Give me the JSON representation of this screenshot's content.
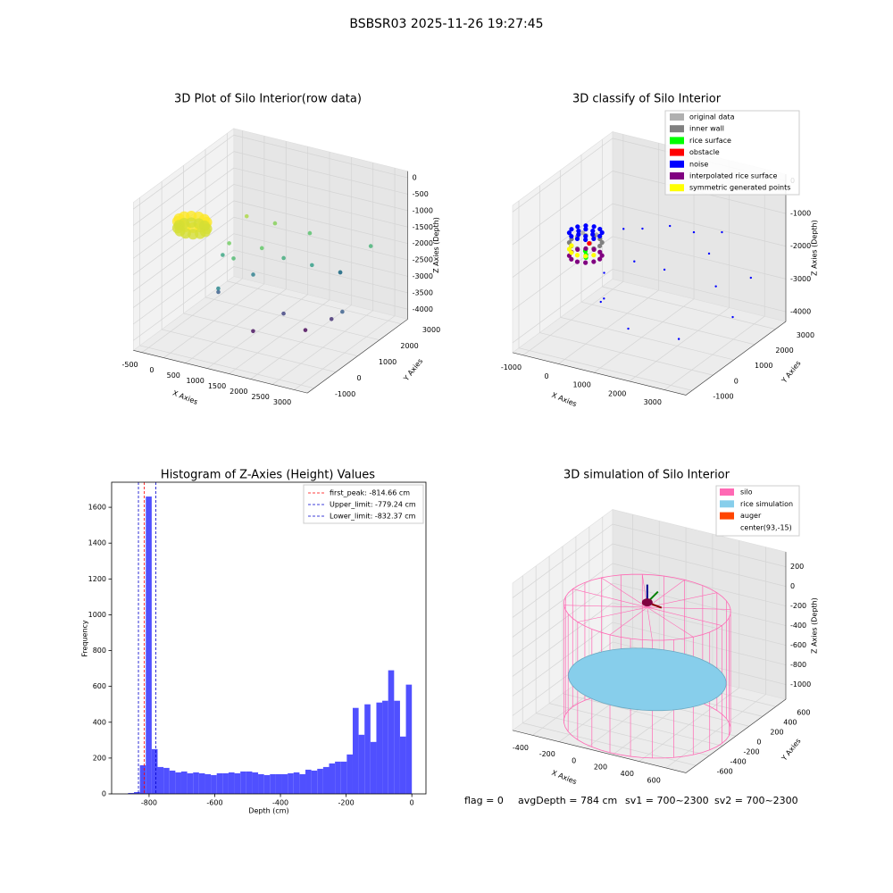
{
  "title": "BSBSR03 2025-11-26 19:27:45",
  "chart_data": [
    {
      "type": "scatter3d",
      "title": "3D Plot of Silo Interior(row data)",
      "xlabel": "X Axies",
      "ylabel": "Y Axies",
      "zlabel": "Z Axies (Depth)",
      "xlim": [
        -700,
        3300
      ],
      "ylim": [
        -1300,
        3300
      ],
      "zlim": [
        -4300,
        200
      ],
      "xticks": [
        -500,
        0,
        500,
        1000,
        1500,
        2000,
        2500,
        3000
      ],
      "yticks": [
        -1000,
        0,
        1000,
        2000,
        3000
      ],
      "zticks": [
        0,
        -500,
        -1000,
        -1500,
        -2000,
        -2500,
        -3000,
        -3500,
        -4000
      ],
      "colormap": "viridis",
      "x": [
        300,
        260,
        150,
        0,
        -150,
        -260,
        -300,
        -260,
        -150,
        0,
        150,
        260,
        300,
        260,
        150,
        0,
        -150,
        -260,
        -300,
        -260,
        -150,
        0,
        150,
        260,
        600,
        800,
        1200,
        1500,
        2000,
        2500,
        900,
        400,
        1800,
        2600,
        3000,
        1300,
        700,
        2200,
        2800,
        500,
        1000,
        1600,
        2100,
        300
      ],
      "y": [
        0,
        150,
        260,
        300,
        260,
        150,
        0,
        -150,
        -260,
        -300,
        -260,
        -150,
        0,
        150,
        260,
        300,
        260,
        150,
        0,
        -150,
        -260,
        -300,
        -260,
        -150,
        500,
        300,
        800,
        1200,
        1500,
        1800,
        1000,
        400,
        600,
        1200,
        900,
        200,
        -200,
        2400,
        2600,
        1500,
        1800,
        2200,
        1000,
        800
      ],
      "z": [
        -800,
        -800,
        -800,
        -800,
        -800,
        -800,
        -800,
        -800,
        -800,
        -800,
        -800,
        -800,
        -1000,
        -1000,
        -1000,
        -1000,
        -1000,
        -1000,
        -1000,
        -1000,
        -1000,
        -1000,
        -1000,
        -1000,
        -1500,
        -1800,
        -1600,
        -2000,
        -2200,
        -2400,
        -2600,
        -3000,
        -3300,
        -3500,
        -3000,
        -3800,
        -2500,
        -2800,
        -1900,
        -1200,
        -1400,
        -1700,
        -3900,
        -2100
      ]
    },
    {
      "type": "scatter3d",
      "title": "3D classify of Silo Interior",
      "xlabel": "X Axies",
      "ylabel": "Y Axies",
      "zlabel": "Z Axies (Depth)",
      "xlim": [
        -1300,
        3600
      ],
      "ylim": [
        -1300,
        3500
      ],
      "zlim": [
        -4300,
        200
      ],
      "xticks": [
        -1000,
        0,
        1000,
        2000,
        3000
      ],
      "yticks": [
        -1000,
        0,
        1000,
        2000,
        3000
      ],
      "zticks": [
        0,
        -1000,
        -2000,
        -3000,
        -4000
      ],
      "series": [
        {
          "name": "original data",
          "color": "#b0b0b0",
          "x": [
            300,
            -200,
            100
          ],
          "y": [
            -300,
            200,
            350
          ],
          "z": [
            -1000,
            -1050,
            -1100
          ]
        },
        {
          "name": "inner wall",
          "color": "#808080",
          "x": [
            400,
            346,
            200,
            0,
            -200,
            -346,
            -400,
            -346,
            -200,
            0,
            200,
            346
          ],
          "y": [
            0,
            200,
            346,
            400,
            346,
            200,
            0,
            -200,
            -346,
            -400,
            -346,
            -200
          ],
          "z": [
            -1200,
            -1200,
            -1200,
            -1200,
            -1200,
            -1200,
            -1200,
            -1200,
            -1200,
            -1200,
            -1200,
            -1200
          ]
        },
        {
          "name": "rice surface",
          "color": "#00ff00",
          "x": [
            50,
            80,
            60
          ],
          "y": [
            -100,
            -120,
            -90
          ],
          "z": [
            -1400,
            -1500,
            -1600
          ]
        },
        {
          "name": "obstacle",
          "color": "#ff0000",
          "x": [
            100
          ],
          "y": [
            0
          ],
          "z": [
            -1200
          ]
        },
        {
          "name": "noise",
          "color": "#0000ff",
          "x": [
            400,
            346,
            200,
            0,
            -200,
            -346,
            -400,
            -346,
            -200,
            0,
            200,
            346,
            200,
            100,
            -100,
            -200,
            -100,
            100,
            600,
            900,
            1500,
            2000,
            2500,
            1200,
            700,
            1700,
            2800,
            3200,
            900,
            1500,
            2400,
            3100,
            1900,
            400
          ],
          "y": [
            0,
            200,
            346,
            400,
            346,
            200,
            0,
            -200,
            -346,
            -400,
            -346,
            -200,
            0,
            173,
            173,
            0,
            -173,
            -173,
            800,
            1200,
            1500,
            1800,
            2300,
            300,
            -300,
            900,
            1500,
            2500,
            -800,
            -500,
            400,
            1800,
            2700,
            200
          ],
          "z": [
            -900,
            -900,
            -900,
            -900,
            -900,
            -900,
            -900,
            -900,
            -900,
            -900,
            -900,
            -900,
            -900,
            -900,
            -900,
            -900,
            -900,
            -900,
            -1000,
            -1100,
            -1000,
            -1200,
            -1300,
            -1600,
            -1800,
            -2000,
            -2500,
            -2600,
            -2400,
            -3200,
            -3700,
            -3500,
            -2300,
            -2900
          ]
        },
        {
          "name": "interpolated rice surface",
          "color": "#800080",
          "x": [
            400,
            346,
            200,
            0,
            -200,
            -346,
            -400,
            -346,
            -200,
            0,
            200,
            346
          ],
          "y": [
            0,
            200,
            346,
            400,
            346,
            200,
            0,
            -200,
            -346,
            -400,
            -346,
            -200
          ],
          "z": [
            -1600,
            -1600,
            -1600,
            -1600,
            -1600,
            -1600,
            -1600,
            -1600,
            -1600,
            -1600,
            -1600,
            -1600
          ]
        },
        {
          "name": "symmetric generated points",
          "color": "#ffff00",
          "x": [
            346,
            200,
            0,
            -200,
            -346,
            -400
          ],
          "y": [
            -200,
            -346,
            -400,
            -346,
            -200,
            0
          ],
          "z": [
            -1400,
            -1400,
            -1400,
            -1400,
            -1400,
            -1400
          ]
        }
      ]
    },
    {
      "type": "histogram",
      "title": "Histogram of Z-Axies (Height) Values",
      "xlabel": "Depth (cm)",
      "ylabel": "Frequency",
      "color": "#5050ff",
      "xlim": [
        -914,
        43
      ],
      "ylim": [
        0,
        1740
      ],
      "xticks": [
        -800,
        -600,
        -400,
        -200,
        0
      ],
      "yticks": [
        0,
        200,
        400,
        600,
        800,
        1000,
        1200,
        1400,
        1600
      ],
      "bins": [
        -864,
        -846,
        -828,
        -810,
        -792,
        -774,
        -756,
        -738,
        -720,
        -702,
        -684,
        -666,
        -648,
        -630,
        -612,
        -594,
        -576,
        -558,
        -540,
        -522,
        -504,
        -486,
        -468,
        -450,
        -432,
        -414,
        -396,
        -378,
        -360,
        -342,
        -324,
        -306,
        -288,
        -270,
        -252,
        -234,
        -216,
        -198,
        -180,
        -162,
        -144,
        -126,
        -108,
        -90,
        -72,
        -54,
        -36,
        -18,
        0
      ],
      "counts": [
        5,
        10,
        160,
        1660,
        250,
        150,
        145,
        130,
        120,
        125,
        115,
        120,
        115,
        110,
        105,
        115,
        115,
        120,
        115,
        125,
        125,
        120,
        110,
        105,
        110,
        110,
        110,
        115,
        120,
        110,
        135,
        130,
        140,
        150,
        170,
        180,
        180,
        220,
        480,
        330,
        500,
        290,
        510,
        520,
        690,
        520,
        320,
        610
      ],
      "vlines": [
        {
          "name": "first_peak: -814.66 cm",
          "value": -814.66,
          "color": "#ff0000"
        },
        {
          "name": "Upper_limit: -779.24 cm",
          "value": -779.24,
          "color": "#0000cc"
        },
        {
          "name": "Lower_limit: -832.37 cm",
          "value": -832.37,
          "color": "#0000cc"
        }
      ]
    },
    {
      "type": "silo3d",
      "title": "3D simulation of Silo Interior",
      "xlabel": "X Axies",
      "ylabel": "Y Axies",
      "zlabel": "Z Axies (Depth)",
      "xlim": [
        -550,
        750
      ],
      "ylim": [
        -750,
        750
      ],
      "zlim": [
        -1150,
        350
      ],
      "xticks": [
        -400,
        -200,
        0,
        200,
        400,
        600
      ],
      "yticks": [
        -600,
        -400,
        -200,
        0,
        200,
        400,
        600
      ],
      "zticks": [
        200,
        0,
        -200,
        -400,
        -600,
        -800,
        -1000
      ],
      "silo": {
        "name": "silo",
        "color": "#ff69b4",
        "radius": 560,
        "top": -50,
        "bottom": -1250
      },
      "rice": {
        "name": "rice simulation",
        "color": "#87ceeb",
        "radius": 530,
        "z": -784
      },
      "auger": {
        "name": "auger",
        "color": "#ff4500",
        "x": 93,
        "y": -15,
        "z": 0
      },
      "center": {
        "name": "center(93,-15)",
        "color": "#ffffff",
        "x": 93,
        "y": -15
      },
      "annotations": [
        "flag = 0",
        "avgDepth = 784 cm",
        "sv1 = 700~2300",
        "sv2 = 700~2300"
      ]
    }
  ]
}
